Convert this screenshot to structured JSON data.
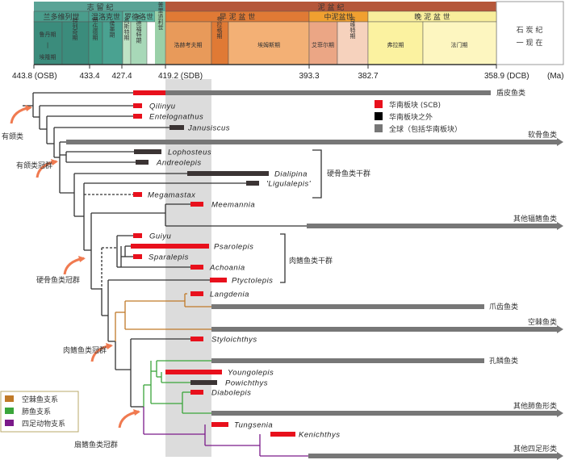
{
  "header": {
    "periods": [
      "志 留 纪",
      "泥 盆 纪"
    ],
    "after": [
      "石 炭 纪",
      "一 现 在"
    ],
    "epochs": [
      "兰多维列世",
      "温洛克世",
      "罗德洛世",
      "普里道利世",
      "早 泥 盆 世",
      "中泥盆世",
      "晚 泥 盆 世"
    ],
    "stages": [
      "鲁丹期",
      "|",
      "埃隆期",
      "特列奇期",
      "申伍德期",
      "侯墨期",
      "高斯特期",
      "卢德福特期",
      "洛赫考夫期",
      "布拉格期",
      "埃姆斯期",
      "艾菲尔期",
      "吉维特期",
      "弗拉期",
      "法门期"
    ]
  },
  "axis": {
    "ticks": [
      "443.8 (OSB)",
      "433.4",
      "427.4",
      "419.2 (SDB)",
      "393.3",
      "382.7",
      "358.9 (DCB)"
    ],
    "unit": "(Ma)"
  },
  "legend_top": [
    {
      "label": "华南板块 (SCB)",
      "color": "#e8101c"
    },
    {
      "label": "华南板块之外",
      "color": "#000000"
    },
    {
      "label": "全球（包括华南板块）",
      "color": "#777777"
    }
  ],
  "legend_bottom": [
    {
      "label": "空棘鱼支系",
      "color": "#c07a28"
    },
    {
      "label": "肺鱼支系",
      "color": "#3aa53a"
    },
    {
      "label": "四足动物支系",
      "color": "#7b1a8a"
    }
  ],
  "taxa": [
    "Qilinyu",
    "Entelognathus",
    "Janusiscus",
    "Lophosteus",
    "Andreolepis",
    "Dialipina",
    "'Ligulalepis'",
    "Megamastax",
    "Meemannia",
    "Guiyu",
    "Psarolepis",
    "Sparalepis",
    "Achoania",
    "Ptyctolepis",
    "Langdenia",
    "Styloichthys",
    "Youngolepis",
    "Powichthys",
    "Diabolepis",
    "Tungsenia",
    "Kenichthys"
  ],
  "groups": [
    "盾皮鱼类",
    "软骨鱼类",
    "其他辐鳍鱼类",
    "爪齿鱼类",
    "空棘鱼类",
    "孔鳞鱼类",
    "其他肺鱼形类",
    "其他四足形类"
  ],
  "brackets": [
    "硬骨鱼类干群",
    "肉鳍鱼类干群"
  ],
  "clades": [
    "有颌类",
    "有颌类冠群",
    "硬骨鱼类冠群",
    "肉鳍鱼类冠群",
    "扇鳍鱼类冠群"
  ]
}
